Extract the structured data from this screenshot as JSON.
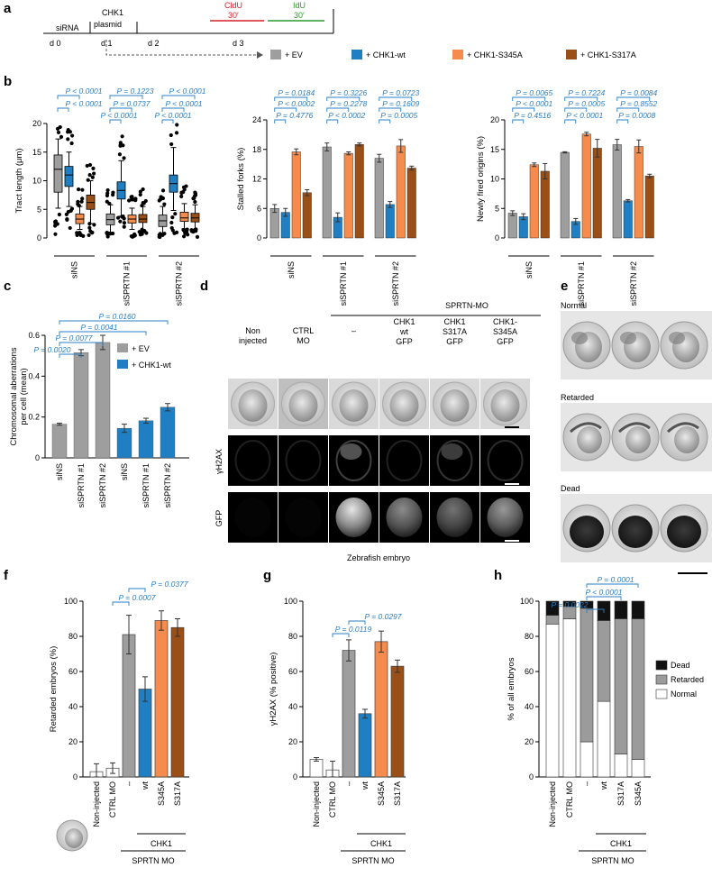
{
  "colors": {
    "ev": "#9e9e9e",
    "wt": "#1f7fc2",
    "s345": "#f58c4e",
    "s317": "#9a4f17",
    "pval": "#2a7ec4",
    "cldu": "#d32027",
    "idu": "#2c9a2c",
    "dead": "#111111",
    "retarded": "#9b9b9b",
    "normal": "#ffffff"
  },
  "panels": {
    "a": "a",
    "b": "b",
    "c": "c",
    "d": "d",
    "e": "e",
    "f": "f",
    "g": "g",
    "h": "h"
  },
  "timeline": {
    "siRNA": "siRNA",
    "chk1": "CHK1",
    "plasmid": "plasmid",
    "cldu": "CldU",
    "cldu_t": "30′",
    "idu": "IdU",
    "idu_t": "30′",
    "days": [
      "d 0",
      "d 1",
      "d 2",
      "d 3"
    ],
    "legend": [
      "+ EV",
      "+ CHK1-wt",
      "+ CHK1-S345A",
      "+ CHK1-S317A"
    ]
  },
  "groups_b": [
    "siNS",
    "siSPRTN #1",
    "siSPRTN #2"
  ],
  "groups_c": [
    "siNS",
    "siSPRTN #1",
    "siSPRTN #2",
    "siNS",
    "siSPRTN #1",
    "siSPRTN #2"
  ],
  "legend_c": [
    "+ EV",
    "+ CHK1-wt"
  ],
  "d_labels": {
    "spr": "SPRTN-MO",
    "cols": [
      "Non injected",
      "CTRL MO",
      "–",
      "CHK1 wt GFP",
      "CHK1 S317A GFP",
      "CHK1- S345A GFP"
    ],
    "rows": [
      "γH2AX",
      "GFP"
    ],
    "caption": "Zebrafish embryo"
  },
  "e_labels": [
    "Normal",
    "Retarded",
    "Dead"
  ],
  "fg_x": [
    "Non-injected",
    "CTRL MO",
    "–",
    "wt",
    "S345A",
    "S317A"
  ],
  "h_x": [
    "Non-injected",
    "CTRL MO",
    "–",
    "wt",
    "S317A",
    "S345A"
  ],
  "chk1": "CHK1",
  "sprtn_mo": "SPRTN MO",
  "h_legend": [
    "Dead",
    "Retarded",
    "Normal"
  ],
  "chart_data": [
    {
      "type": "box",
      "ylabel": "Tract length (μm)",
      "ylim": [
        0,
        20
      ],
      "yticks": [
        0,
        5,
        10,
        15,
        20
      ],
      "series": [
        {
          "name": "+ EV",
          "boxes": [
            {
              "q1": 8,
              "med": 12,
              "q3": 14.5,
              "lo": 5.2,
              "hi": 17.3
            },
            {
              "q1": 2.3,
              "med": 3.2,
              "q3": 4.2,
              "lo": 1,
              "hi": 5.8
            },
            {
              "q1": 2,
              "med": 3,
              "q3": 4,
              "lo": 0.8,
              "hi": 5.5
            }
          ]
        },
        {
          "name": "+ CHK1-wt",
          "boxes": [
            {
              "q1": 9,
              "med": 11,
              "q3": 12.5,
              "lo": 5.5,
              "hi": 15
            },
            {
              "q1": 6.8,
              "med": 8.3,
              "q3": 9.8,
              "lo": 3.8,
              "hi": 13.5
            },
            {
              "q1": 8,
              "med": 9.5,
              "q3": 11,
              "lo": 4.8,
              "hi": 15.8
            }
          ]
        },
        {
          "name": "+ CHK1-S345A",
          "boxes": [
            {
              "q1": 2.5,
              "med": 3.3,
              "q3": 4.2,
              "lo": 1.5,
              "hi": 5.5
            },
            {
              "q1": 2.6,
              "med": 3.3,
              "q3": 4,
              "lo": 1.5,
              "hi": 5.2
            },
            {
              "q1": 2.9,
              "med": 3.5,
              "q3": 4.5,
              "lo": 1.6,
              "hi": 6
            }
          ]
        },
        {
          "name": "+ CHK1-S317A",
          "boxes": [
            {
              "q1": 5,
              "med": 6.2,
              "q3": 7.5,
              "lo": 2.5,
              "hi": 10
            },
            {
              "q1": 2.7,
              "med": 3.3,
              "q3": 4.1,
              "lo": 1.5,
              "hi": 5.5
            },
            {
              "q1": 2.8,
              "med": 3.5,
              "q3": 4.3,
              "lo": 1.5,
              "hi": 5.8
            }
          ]
        }
      ],
      "pvalues": [
        [
          "P < 0.0001",
          "P < 0.0001"
        ],
        [
          "P = 0.1223",
          "P = 0.0737",
          "P < 0.0001"
        ],
        [
          "P < 0.0001",
          "P < 0.0001",
          "P < 0.0001"
        ]
      ]
    },
    {
      "type": "bar",
      "ylabel": "Stalled forks (%)",
      "ylim": [
        0,
        24
      ],
      "yticks": [
        0,
        6,
        12,
        18,
        24
      ],
      "series": [
        {
          "name": "+ EV",
          "values": [
            6,
            18.5,
            16.2
          ],
          "err": [
            0.8,
            0.8,
            0.8
          ]
        },
        {
          "name": "+ CHK1-wt",
          "values": [
            5.2,
            4.2,
            6.8
          ],
          "err": [
            0.8,
            0.9,
            0.6
          ]
        },
        {
          "name": "+ CHK1-S345A",
          "values": [
            17.5,
            17.2,
            18.7
          ],
          "err": [
            0.6,
            0.3,
            1.3
          ]
        },
        {
          "name": "+ CHK1-S317A",
          "values": [
            9.2,
            19,
            14.2
          ],
          "err": [
            0.6,
            0.3,
            0.4
          ]
        }
      ],
      "pvalues": [
        [
          "P = 0.0184",
          "P < 0.0002",
          "P = 0.4776"
        ],
        [
          "P = 0.3226",
          "P = 0.2278",
          "P < 0.0002"
        ],
        [
          "P = 0.0723",
          "P = 0.1609",
          "P = 0.0005"
        ]
      ]
    },
    {
      "type": "bar",
      "ylabel": "Newly fired origins (%)",
      "ylim": [
        0,
        20
      ],
      "yticks": [
        0,
        5,
        10,
        15,
        20
      ],
      "series": [
        {
          "name": "+ EV",
          "values": [
            4.2,
            14.5,
            15.8
          ],
          "err": [
            0.4,
            0.1,
            0.9
          ]
        },
        {
          "name": "+ CHK1-wt",
          "values": [
            3.6,
            2.8,
            6.3
          ],
          "err": [
            0.5,
            0.5,
            0.2
          ]
        },
        {
          "name": "+ CHK1-S345A",
          "values": [
            12.4,
            17.6,
            15.5
          ],
          "err": [
            0.3,
            0.3,
            1.1
          ]
        },
        {
          "name": "+ CHK1-S317A",
          "values": [
            11.3,
            15.2,
            10.5
          ],
          "err": [
            1.3,
            1.5,
            0.3
          ]
        }
      ],
      "pvalues": [
        [
          "P = 0.0065",
          "P < 0.0001",
          "P = 0.4516"
        ],
        [
          "P = 0.7224",
          "P = 0.0005",
          "P < 0.0001"
        ],
        [
          "P = 0.0084",
          "P = 0.8552",
          "P = 0.0008"
        ]
      ]
    },
    {
      "type": "bar",
      "ylabel": "Chromosomal aberrations per cell (mean)",
      "ylim": [
        0,
        0.6
      ],
      "yticks": [
        0,
        0.2,
        0.4,
        0.6
      ],
      "categories": [
        "siNS",
        "siSPRTN #1",
        "siSPRTN #2",
        "siNS",
        "siSPRTN #1",
        "siSPRTN #2"
      ],
      "values": [
        0.165,
        0.515,
        0.565,
        0.145,
        0.182,
        0.248
      ],
      "err": [
        0.005,
        0.015,
        0.035,
        0.02,
        0.012,
        0.018
      ],
      "pvalues": [
        "P = 0.0160",
        "P = 0.0041",
        "P = 0.0077",
        "P = 0.0020"
      ]
    },
    {
      "type": "bar",
      "ylabel": "Retarded embryos (%)",
      "ylim": [
        0,
        100
      ],
      "yticks": [
        0,
        20,
        40,
        60,
        80,
        100
      ],
      "categories": [
        "Non-injected",
        "CTRL MO",
        "–",
        "wt",
        "S345A",
        "S317A"
      ],
      "values": [
        3,
        5,
        81,
        50,
        89,
        85
      ],
      "err": [
        4.5,
        3,
        11,
        7,
        5.5,
        5
      ],
      "pvalues": [
        "P = 0.0007",
        "P = 0.0377"
      ]
    },
    {
      "type": "bar",
      "ylabel": "γH2AX (% positive)",
      "ylim": [
        0,
        100
      ],
      "yticks": [
        0,
        20,
        40,
        60,
        80,
        100
      ],
      "categories": [
        "Non-injected",
        "CTRL MO",
        "–",
        "wt",
        "S345A",
        "S317A"
      ],
      "values": [
        10,
        4,
        72,
        36,
        77,
        63
      ],
      "err": [
        1,
        5,
        6,
        2.5,
        6,
        3.5
      ],
      "pvalues": [
        "P = 0.0119",
        "P = 0.0297"
      ]
    },
    {
      "type": "stacked-bar",
      "ylabel": "% of all embryos",
      "ylim": [
        0,
        100
      ],
      "yticks": [
        0,
        20,
        40,
        60,
        80,
        100
      ],
      "categories": [
        "Non-injected",
        "CTRL MO",
        "–",
        "wt",
        "S317A",
        "S345A"
      ],
      "series": [
        {
          "name": "Normal",
          "values": [
            87,
            90,
            20,
            43,
            13,
            10
          ]
        },
        {
          "name": "Retarded",
          "values": [
            5,
            7,
            76,
            46,
            77,
            80
          ]
        },
        {
          "name": "Dead",
          "values": [
            8,
            3,
            4,
            11,
            10,
            10
          ]
        }
      ],
      "pvalues": [
        "P = 0.0001",
        "P < 0.0001",
        "P = 0.0022"
      ]
    }
  ]
}
